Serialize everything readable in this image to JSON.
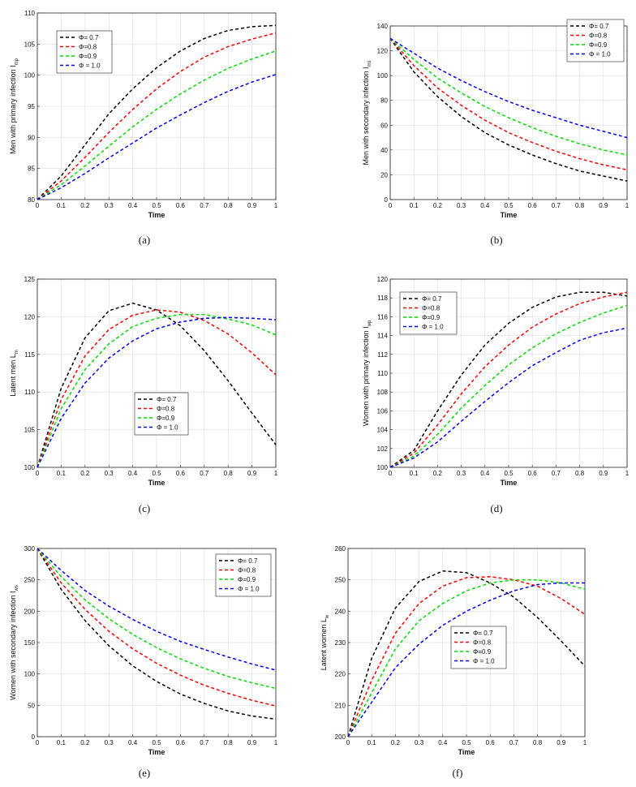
{
  "figure": {
    "panel_count": 6
  },
  "chart_data": [
    {
      "id": "a",
      "type": "line",
      "caption": "(a)",
      "xlabel": "Time",
      "ylabel": "Men with primary infection I",
      "ylabel_sub": "mp",
      "xlim": [
        0,
        1
      ],
      "ylim": [
        80,
        110
      ],
      "xticks": [
        "0",
        "0.1",
        "0.2",
        "0.3",
        "0.4",
        "0.5",
        "0.6",
        "0.7",
        "0.8",
        "0.9",
        "1"
      ],
      "yticks": [
        "80",
        "85",
        "90",
        "95",
        "100",
        "105",
        "110"
      ],
      "legend_position": "top-left",
      "x": [
        0,
        0.1,
        0.2,
        0.3,
        0.4,
        0.5,
        0.6,
        0.7,
        0.8,
        0.9,
        1
      ],
      "series": [
        {
          "name": "Φ= 0.7",
          "color": "#000000",
          "values": [
            80,
            83.8,
            88.8,
            93.8,
            97.8,
            101.2,
            103.9,
            105.9,
            107.2,
            107.8,
            108
          ]
        },
        {
          "name": "Φ=0.8",
          "color": "#ff0000",
          "values": [
            80,
            83,
            86.8,
            90.8,
            94.5,
            97.8,
            100.6,
            102.9,
            104.6,
            105.8,
            106.8
          ]
        },
        {
          "name": "Φ=0.9",
          "color": "#00dd00",
          "values": [
            80,
            82.4,
            85.4,
            88.6,
            91.7,
            94.5,
            97,
            99.2,
            101.1,
            102.6,
            103.9
          ]
        },
        {
          "name": "Φ = 1.0",
          "color": "#0000ff",
          "values": [
            80,
            81.9,
            84.2,
            86.7,
            89.1,
            91.5,
            93.6,
            95.6,
            97.4,
            98.9,
            100.1
          ]
        }
      ]
    },
    {
      "id": "b",
      "type": "line",
      "caption": "(b)",
      "xlabel": "Time",
      "ylabel": "Men with secondary infection I",
      "ylabel_sub": "ms",
      "xlim": [
        0,
        1
      ],
      "ylim": [
        0,
        140
      ],
      "xticks": [
        "0",
        "0.1",
        "0.2",
        "0.3",
        "0.4",
        "0.5",
        "0.6",
        "0.7",
        "0.8",
        "0.9",
        "1"
      ],
      "yticks": [
        "0",
        "20",
        "40",
        "60",
        "80",
        "100",
        "120",
        "140"
      ],
      "legend_position": "top-right",
      "x": [
        0,
        0.1,
        0.2,
        0.3,
        0.4,
        0.5,
        0.6,
        0.7,
        0.8,
        0.9,
        1
      ],
      "series": [
        {
          "name": "Φ= 0.7",
          "color": "#000000",
          "values": [
            130,
            103,
            83,
            67,
            54,
            44,
            36,
            29,
            23,
            19,
            15
          ]
        },
        {
          "name": "Φ=0.8",
          "color": "#ff0000",
          "values": [
            130,
            108,
            90,
            76,
            64,
            54,
            46,
            39,
            33,
            28,
            24
          ]
        },
        {
          "name": "Φ=0.9",
          "color": "#00dd00",
          "values": [
            130,
            113,
            98,
            86,
            75,
            66,
            58,
            51,
            45,
            40,
            36
          ]
        },
        {
          "name": "Φ = 1.0",
          "color": "#0000ff",
          "values": [
            130,
            118,
            106,
            96,
            87,
            79,
            72,
            66,
            60,
            55,
            50
          ]
        }
      ]
    },
    {
      "id": "c",
      "type": "line",
      "caption": "(c)",
      "xlabel": "Time",
      "ylabel": "Latent men L",
      "ylabel_sub": "m",
      "xlim": [
        0,
        1
      ],
      "ylim": [
        100,
        125
      ],
      "xticks": [
        "0",
        "0.1",
        "0.2",
        "0.3",
        "0.4",
        "0.5",
        "0.6",
        "0.7",
        "0.8",
        "0.9",
        "1"
      ],
      "yticks": [
        "100",
        "105",
        "110",
        "115",
        "120",
        "125"
      ],
      "legend_position": "bottom-center",
      "x": [
        0,
        0.1,
        0.2,
        0.3,
        0.4,
        0.5,
        0.6,
        0.7,
        0.8,
        0.9,
        1
      ],
      "series": [
        {
          "name": "Φ= 0.7",
          "color": "#000000",
          "values": [
            100,
            110.5,
            117.2,
            120.8,
            121.8,
            120.9,
            118.8,
            115.5,
            111.5,
            107.2,
            103
          ]
        },
        {
          "name": "Φ=0.8",
          "color": "#ff0000",
          "values": [
            100,
            109,
            114.8,
            118.3,
            120.2,
            120.9,
            120.6,
            119.5,
            117.7,
            115.2,
            112.3
          ]
        },
        {
          "name": "Φ=0.9",
          "color": "#00dd00",
          "values": [
            100,
            107.8,
            113,
            116.4,
            118.7,
            119.8,
            120.3,
            120.3,
            119.7,
            118.9,
            117.6
          ]
        },
        {
          "name": "Φ = 1.0",
          "color": "#0000ff",
          "values": [
            100,
            106.5,
            111.2,
            114.5,
            116.8,
            118.4,
            119.3,
            119.8,
            119.9,
            119.8,
            119.6
          ]
        }
      ]
    },
    {
      "id": "d",
      "type": "line",
      "caption": "(d)",
      "xlabel": "Time",
      "ylabel": "Women with primary infection I",
      "ylabel_sub": "wp",
      "xlim": [
        0,
        1
      ],
      "ylim": [
        100,
        120
      ],
      "xticks": [
        "0",
        "0.1",
        "0.2",
        "0.3",
        "0.4",
        "0.5",
        "0.6",
        "0.7",
        "0.8",
        "0.9",
        "1"
      ],
      "yticks": [
        "100",
        "102",
        "104",
        "106",
        "108",
        "110",
        "112",
        "114",
        "116",
        "118",
        "120"
      ],
      "legend_position": "top-left",
      "x": [
        0,
        0.1,
        0.2,
        0.3,
        0.4,
        0.5,
        0.6,
        0.7,
        0.8,
        0.9,
        1
      ],
      "series": [
        {
          "name": "Φ= 0.7",
          "color": "#000000",
          "values": [
            100,
            101.8,
            106,
            109.8,
            113,
            115.3,
            117,
            118.1,
            118.6,
            118.6,
            118.2
          ]
        },
        {
          "name": "Φ=0.8",
          "color": "#ff0000",
          "values": [
            100,
            101.5,
            104.5,
            107.8,
            110.7,
            113,
            114.9,
            116.3,
            117.4,
            118.1,
            118.6
          ]
        },
        {
          "name": "Φ=0.9",
          "color": "#00dd00",
          "values": [
            100,
            101.2,
            103.5,
            106.3,
            108.7,
            110.9,
            112.7,
            114.2,
            115.4,
            116.4,
            117.2
          ]
        },
        {
          "name": "Φ = 1.0",
          "color": "#0000ff",
          "values": [
            100,
            101,
            102.7,
            104.9,
            107,
            109,
            110.8,
            112.2,
            113.5,
            114.3,
            114.8
          ]
        }
      ]
    },
    {
      "id": "e",
      "type": "line",
      "caption": "(e)",
      "xlabel": "Time",
      "ylabel": "Women with secondary infection I",
      "ylabel_sub": "ws",
      "xlim": [
        0,
        1
      ],
      "ylim": [
        0,
        300
      ],
      "xticks": [
        "0",
        "0.1",
        "0.2",
        "0.3",
        "0.4",
        "0.5",
        "0.6",
        "0.7",
        "0.8",
        "0.9",
        "1"
      ],
      "yticks": [
        "0",
        "50",
        "100",
        "150",
        "200",
        "250",
        "300"
      ],
      "legend_position": "top-right",
      "x": [
        0,
        0.1,
        0.2,
        0.3,
        0.4,
        0.5,
        0.6,
        0.7,
        0.8,
        0.9,
        1
      ],
      "series": [
        {
          "name": "Φ= 0.7",
          "color": "#000000",
          "values": [
            300,
            235,
            185,
            145,
            113,
            88,
            68,
            53,
            41,
            33,
            28
          ]
        },
        {
          "name": "Φ=0.8",
          "color": "#ff0000",
          "values": [
            300,
            245,
            203,
            168,
            140,
            117,
            98,
            82,
            69,
            58,
            49
          ]
        },
        {
          "name": "Φ=0.9",
          "color": "#00dd00",
          "values": [
            300,
            255,
            218,
            188,
            163,
            142,
            124,
            109,
            96,
            86,
            77
          ]
        },
        {
          "name": "Φ = 1.0",
          "color": "#0000ff",
          "values": [
            300,
            265,
            233,
            208,
            187,
            168,
            152,
            139,
            127,
            116,
            106
          ]
        }
      ]
    },
    {
      "id": "f",
      "type": "line",
      "caption": "(f)",
      "xlabel": "Time",
      "ylabel": "Latent women L",
      "ylabel_sub": "w",
      "xlim": [
        0,
        1
      ],
      "ylim": [
        200,
        260
      ],
      "xticks": [
        "0",
        "0.1",
        "0.2",
        "0.3",
        "0.4",
        "0.5",
        "0.6",
        "0.7",
        "0.8",
        "0.9",
        "1"
      ],
      "yticks": [
        "200",
        "210",
        "220",
        "230",
        "240",
        "250",
        "260"
      ],
      "legend_position": "bottom-center",
      "x": [
        0,
        0.1,
        0.2,
        0.3,
        0.4,
        0.5,
        0.6,
        0.7,
        0.8,
        0.9,
        1
      ],
      "series": [
        {
          "name": "Φ= 0.7",
          "color": "#000000",
          "values": [
            200,
            225,
            241,
            249.5,
            252.8,
            252.3,
            249,
            244.5,
            238,
            230.5,
            222.5
          ]
        },
        {
          "name": "Φ=0.8",
          "color": "#ff0000",
          "values": [
            200,
            218,
            233,
            242.5,
            248,
            250.7,
            251,
            250,
            248,
            244,
            239
          ]
        },
        {
          "name": "Φ=0.9",
          "color": "#00dd00",
          "values": [
            200,
            214,
            228,
            237,
            242.5,
            246.5,
            249,
            250,
            250,
            249,
            247
          ]
        },
        {
          "name": "Φ = 1.0",
          "color": "#0000ff",
          "values": [
            200,
            211,
            222,
            229.5,
            235.5,
            240,
            243.5,
            246.5,
            248.5,
            249,
            249
          ]
        }
      ]
    }
  ]
}
